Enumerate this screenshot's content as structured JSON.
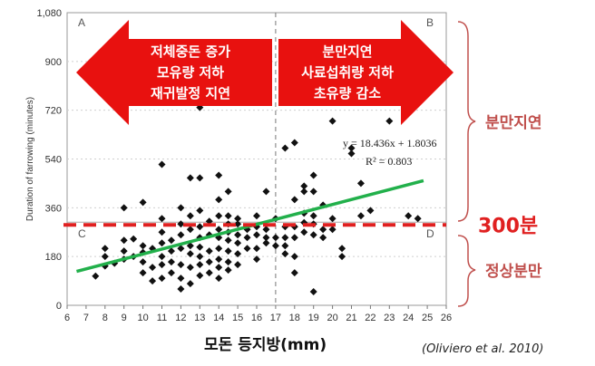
{
  "chart_data": {
    "type": "scatter",
    "xlim": [
      6,
      26
    ],
    "ylim": [
      0,
      1080
    ],
    "x_ticks": [
      "6",
      "7",
      "8",
      "9",
      "10",
      "11",
      "12",
      "13",
      "14",
      "15",
      "16",
      "17",
      "18",
      "19",
      "20",
      "21",
      "22",
      "23",
      "24",
      "25",
      "26"
    ],
    "y_ticks": [
      "0",
      "180",
      "360",
      "540",
      "720",
      "900",
      "1,080"
    ],
    "ylabel": "Duration of farrowing (minutes)",
    "xlabel": "모돈 등지방(mm)",
    "x_divider": 17,
    "y_divider": 300,
    "quadrants": [
      "A",
      "B",
      "C",
      "D"
    ],
    "trendline": {
      "equation": "y = 18.436x + 1.8036",
      "r2": "R² = 0.803",
      "from_x": 6.5,
      "to_x": 24.8,
      "y_start": 125,
      "y_end": 460,
      "color": "#22b04b"
    },
    "threshold": {
      "value": 300,
      "label": "300분",
      "color": "#e02020"
    },
    "left_arrow_text": [
      "저체중돈 증가",
      "모유량 저하",
      "재귀발정 지연"
    ],
    "right_arrow_text": [
      "분만지연",
      "사료섭취량 저하",
      "초유량 감소"
    ],
    "arrow_color": "#e8110f",
    "bracket_labels": {
      "upper": "분만지연",
      "lower": "정상분만"
    },
    "bracket_color": "#c0504d",
    "points": [
      [
        7.5,
        108
      ],
      [
        8,
        180
      ],
      [
        8,
        210
      ],
      [
        8,
        145
      ],
      [
        8.5,
        155
      ],
      [
        9,
        360
      ],
      [
        9,
        240
      ],
      [
        9,
        200
      ],
      [
        9,
        170
      ],
      [
        9.5,
        180
      ],
      [
        9.5,
        245
      ],
      [
        10,
        380
      ],
      [
        10,
        220
      ],
      [
        10,
        195
      ],
      [
        10,
        160
      ],
      [
        10,
        120
      ],
      [
        10.5,
        140
      ],
      [
        10.5,
        90
      ],
      [
        10.5,
        210
      ],
      [
        11,
        520
      ],
      [
        11,
        320
      ],
      [
        11,
        270
      ],
      [
        11,
        230
      ],
      [
        11,
        180
      ],
      [
        11,
        150
      ],
      [
        11,
        100
      ],
      [
        11.5,
        240
      ],
      [
        11.5,
        200
      ],
      [
        11.5,
        160
      ],
      [
        11.5,
        120
      ],
      [
        12,
        360
      ],
      [
        12,
        300
      ],
      [
        12,
        260
      ],
      [
        12,
        210
      ],
      [
        12,
        150
      ],
      [
        12,
        100
      ],
      [
        12,
        60
      ],
      [
        12.5,
        470
      ],
      [
        12.5,
        330
      ],
      [
        12.5,
        280
      ],
      [
        12.5,
        220
      ],
      [
        12.5,
        190
      ],
      [
        12.5,
        140
      ],
      [
        12.5,
        80
      ],
      [
        13,
        730
      ],
      [
        13,
        470
      ],
      [
        13,
        350
      ],
      [
        13,
        290
      ],
      [
        13,
        250
      ],
      [
        13,
        215
      ],
      [
        13,
        180
      ],
      [
        13,
        150
      ],
      [
        13,
        110
      ],
      [
        13.5,
        310
      ],
      [
        13.5,
        260
      ],
      [
        13.5,
        200
      ],
      [
        13.5,
        160
      ],
      [
        13.5,
        120
      ],
      [
        14,
        480
      ],
      [
        14,
        390
      ],
      [
        14,
        330
      ],
      [
        14,
        280
      ],
      [
        14,
        250
      ],
      [
        14,
        210
      ],
      [
        14,
        170
      ],
      [
        14,
        140
      ],
      [
        14,
        100
      ],
      [
        14.5,
        420
      ],
      [
        14.5,
        330
      ],
      [
        14.5,
        300
      ],
      [
        14.5,
        270
      ],
      [
        14.5,
        240
      ],
      [
        14.5,
        200
      ],
      [
        14.5,
        160
      ],
      [
        14.5,
        130
      ],
      [
        15,
        320
      ],
      [
        15,
        300
      ],
      [
        15,
        260
      ],
      [
        15,
        230
      ],
      [
        15,
        190
      ],
      [
        15,
        150
      ],
      [
        15.5,
        280
      ],
      [
        15.5,
        250
      ],
      [
        15.5,
        210
      ],
      [
        16,
        330
      ],
      [
        16,
        290
      ],
      [
        16,
        260
      ],
      [
        16,
        210
      ],
      [
        16,
        170
      ],
      [
        16.5,
        420
      ],
      [
        16.5,
        280
      ],
      [
        16.5,
        250
      ],
      [
        16.5,
        230
      ],
      [
        17,
        320
      ],
      [
        17,
        250
      ],
      [
        17,
        220
      ],
      [
        17.5,
        290
      ],
      [
        17.5,
        250
      ],
      [
        17.5,
        220
      ],
      [
        17.5,
        190
      ],
      [
        17.5,
        580
      ],
      [
        18,
        600
      ],
      [
        18,
        390
      ],
      [
        18,
        290
      ],
      [
        18,
        250
      ],
      [
        18,
        180
      ],
      [
        18,
        120
      ],
      [
        18.5,
        440
      ],
      [
        18.5,
        420
      ],
      [
        18.5,
        340
      ],
      [
        18.5,
        305
      ],
      [
        18.5,
        270
      ],
      [
        19,
        480
      ],
      [
        19,
        420
      ],
      [
        19,
        330
      ],
      [
        19,
        300
      ],
      [
        19,
        260
      ],
      [
        19,
        50
      ],
      [
        19,
        760
      ],
      [
        19.5,
        370
      ],
      [
        19.5,
        280
      ],
      [
        19.5,
        250
      ],
      [
        20,
        680
      ],
      [
        20,
        320
      ],
      [
        20,
        280
      ],
      [
        20.5,
        210
      ],
      [
        20.5,
        180
      ],
      [
        21,
        580
      ],
      [
        21,
        560
      ],
      [
        21.5,
        450
      ],
      [
        21.5,
        330
      ],
      [
        22,
        350
      ],
      [
        23,
        680
      ],
      [
        24,
        330
      ],
      [
        24.5,
        320
      ]
    ]
  }
}
